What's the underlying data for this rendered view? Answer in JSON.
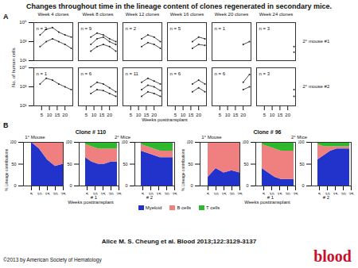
{
  "title": "Changes throughout time in the lineage content of clones regenerated in secondary mice.",
  "citation": "Alice M. S. Cheung et al. Blood 2013;122:3129-3137",
  "copyright": "©2013 by American Society of Hematology",
  "logo": "blood",
  "chart_data": [
    {
      "type": "line",
      "panel": "A",
      "log": "y",
      "x_label": "Weeks posttransplant",
      "y_label": "No. of human cells",
      "xlim": [
        0,
        25
      ],
      "xticks": [
        5,
        10,
        15,
        20
      ],
      "ylim": [
        10,
        100000
      ],
      "yticks": [
        {
          "value": 10,
          "label": "10¹"
        },
        {
          "value": 1000,
          "label": "10³"
        },
        {
          "value": 100000,
          "label": "10⁵"
        }
      ],
      "x": [
        4,
        8,
        12,
        16,
        20,
        24
      ],
      "columns": [
        "Week 4 clones",
        "Week 8 clones",
        "Week 12 clones",
        "Week 16 clones",
        "Week 20 clones",
        "Week 24 clones"
      ],
      "rows": [
        {
          "name": "2° mouse #1",
          "panels": [
            {
              "label": "n = 2",
              "clones": [
                [
                  5000,
                  20000,
                  30000,
                  10000,
                  5000,
                  3000
                ],
                [
                  300,
                  1000,
                  2000,
                  1000,
                  500,
                  200
                ]
              ]
            },
            {
              "label": "n = 9",
              "clones": [
                [
                  null,
                  3000,
                  8000,
                  5000,
                  2000,
                  1000
                ],
                [
                  null,
                  500,
                  2000,
                  3000,
                  1000,
                  500
                ],
                [
                  null,
                  100,
                  300,
                  500,
                  300,
                  100
                ]
              ]
            },
            {
              "label": "n = 2",
              "clones": [
                [
                  null,
                  null,
                  2000,
                  5000,
                  3000,
                  1000
                ],
                [
                  null,
                  null,
                  300,
                  800,
                  500,
                  200
                ]
              ]
            },
            {
              "label": "n = 5",
              "clones": [
                [
                  null,
                  null,
                  null,
                  1000,
                  3000,
                  2000
                ],
                [
                  null,
                  null,
                  null,
                  200,
                  500,
                  400
                ]
              ]
            },
            {
              "label": "n = 1",
              "clones": [
                [
                  null,
                  null,
                  null,
                  null,
                  500,
                  1000
                ]
              ]
            },
            {
              "label": "n = 3",
              "clones": [
                [
                  null,
                  null,
                  null,
                  null,
                  null,
                  300
                ],
                [
                  null,
                  null,
                  null,
                  null,
                  null,
                  80
                ]
              ]
            }
          ]
        },
        {
          "name": "2° mouse #2",
          "panels": [
            {
              "label": "n = 1",
              "clones": [
                [
                  2000,
                  8000,
                  5000,
                  2000,
                  1000,
                  500
                ]
              ]
            },
            {
              "label": "n = 6",
              "clones": [
                [
                  null,
                  1000,
                  3000,
                  2000,
                  800,
                  300
                ],
                [
                  null,
                  200,
                  500,
                  400,
                  200,
                  100
                ]
              ]
            },
            {
              "label": "n = 11",
              "clones": [
                [
                  null,
                  null,
                  3000,
                  8000,
                  4000,
                  2000
                ],
                [
                  null,
                  null,
                  500,
                  1500,
                  1000,
                  400
                ],
                [
                  null,
                  null,
                  100,
                  300,
                  200,
                  100
                ]
              ]
            },
            {
              "label": "n = 6",
              "clones": [
                [
                  null,
                  null,
                  null,
                  2000,
                  5000,
                  2000
                ],
                [
                  null,
                  null,
                  null,
                  300,
                  800,
                  300
                ]
              ]
            },
            {
              "label": "n = 6",
              "clones": [
                [
                  null,
                  null,
                  null,
                  null,
                  3000,
                  20000
                ],
                [
                  null,
                  null,
                  null,
                  null,
                  500,
                  1000
                ]
              ]
            },
            {
              "label": "n = 3",
              "clones": [
                [
                  null,
                  null,
                  null,
                  null,
                  null,
                  500
                ],
                [
                  null,
                  null,
                  null,
                  null,
                  null,
                  100
                ]
              ]
            }
          ]
        }
      ]
    },
    {
      "type": "area",
      "panel": "B",
      "stacked": true,
      "x_label": "Weeks posttransplant",
      "y_label": "% Lineage contributions",
      "xlim": [
        0,
        25
      ],
      "xticks": [
        5,
        10,
        15,
        20,
        25
      ],
      "ylim": [
        0,
        100
      ],
      "yticks": [
        0,
        50,
        100
      ],
      "lineages": [
        {
          "name": "Myeloid",
          "color": "#2233cc"
        },
        {
          "name": "B cells",
          "color": "#f08080"
        },
        {
          "name": "T cells",
          "color": "#2eb82e"
        }
      ],
      "clones": [
        {
          "name": "Clone # 110",
          "primary": {
            "label": "1° Mouse",
            "x": [
              5,
              10,
              15,
              20,
              25
            ],
            "values": [
              [
                100,
                85,
                60,
                45,
                50
              ],
              [
                0,
                15,
                40,
                55,
                50
              ],
              [
                0,
                0,
                0,
                0,
                0
              ]
            ]
          },
          "secondary_label": "2° Mice",
          "secondary": [
            {
              "label": "# 1",
              "x": [
                4,
                8,
                12,
                16,
                20,
                24
              ],
              "values": [
                [
                  65,
                  55,
                  50,
                  50,
                  55,
                  55
                ],
                [
                  30,
                  35,
                  35,
                  35,
                  30,
                  30
                ],
                [
                  5,
                  10,
                  15,
                  15,
                  15,
                  15
                ]
              ]
            },
            {
              "label": "# 2",
              "x": [
                4,
                8,
                12,
                16,
                20,
                24
              ],
              "values": [
                [
                  80,
                  75,
                  70,
                  65,
                  65,
                  65
                ],
                [
                  15,
                  15,
                  15,
                  15,
                  15,
                  15
                ],
                [
                  5,
                  10,
                  15,
                  20,
                  20,
                  20
                ]
              ]
            }
          ]
        },
        {
          "name": "Clone # 96",
          "primary": {
            "label": "1° Mouse",
            "x": [
              5,
              10,
              15,
              20,
              25
            ],
            "values": [
              [
                20,
                40,
                30,
                35,
                30
              ],
              [
                80,
                60,
                70,
                65,
                70
              ],
              [
                0,
                0,
                0,
                0,
                0
              ]
            ]
          },
          "secondary_label": "2° Mice",
          "secondary": [
            {
              "label": "# 1",
              "x": [
                4,
                8,
                12,
                16,
                20,
                24
              ],
              "values": [
                [
                  40,
                  30,
                  20,
                  15,
                  15,
                  15
                ],
                [
                  55,
                  60,
                  65,
                  65,
                  65,
                  65
                ],
                [
                  5,
                  10,
                  15,
                  20,
                  20,
                  20
                ]
              ]
            },
            {
              "label": "# 2",
              "x": [
                4,
                8,
                12,
                16,
                20,
                24
              ],
              "values": [
                [
                  60,
                  70,
                  80,
                  85,
                  85,
                  85
                ],
                [
                  35,
                  20,
                  10,
                  5,
                  5,
                  5
                ],
                [
                  5,
                  10,
                  10,
                  10,
                  10,
                  10
                ]
              ]
            }
          ]
        }
      ]
    }
  ]
}
